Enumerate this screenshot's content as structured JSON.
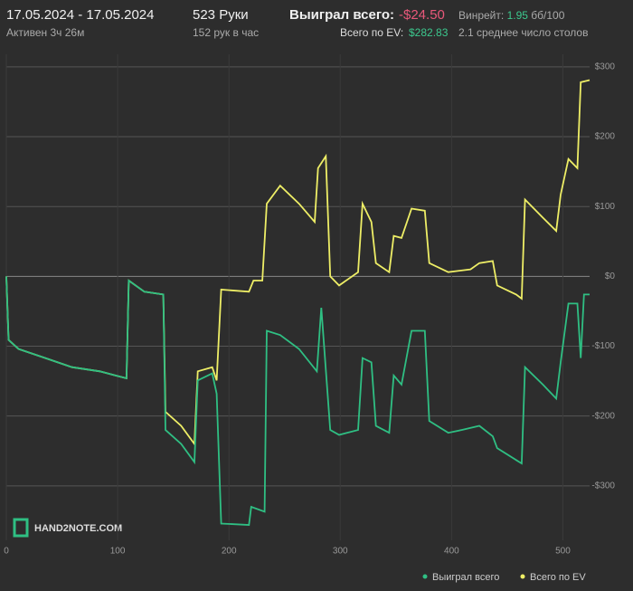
{
  "header": {
    "date_range": "17.05.2024 - 17.05.2024",
    "active": "Активен 3ч 26м",
    "hands": "523 Руки",
    "hands_per_hour": "152 рук в час",
    "won_label": "Выиграл всего:",
    "won_value": "-$24.50",
    "ev_label": "Всего по EV:",
    "ev_value": "$282.83",
    "winrate_label": "Винрейт:",
    "winrate_value": "1.95",
    "winrate_unit": "бб/100",
    "tables": "2.1 среднее число столов"
  },
  "logo": "HAND2NOTE.COM",
  "chart_data": {
    "type": "line",
    "xlim": [
      0,
      524
    ],
    "ylim": [
      -378,
      318
    ],
    "xticks": [
      0,
      100,
      200,
      300,
      400,
      500
    ],
    "yticks": [
      {
        "value": -300,
        "label": "-$300"
      },
      {
        "value": -200,
        "label": "-$200"
      },
      {
        "value": -100,
        "label": "-$100"
      },
      {
        "value": 0,
        "label": "$0"
      },
      {
        "value": 100,
        "label": "$100"
      },
      {
        "value": 200,
        "label": "$200"
      },
      {
        "value": 300,
        "label": "$300"
      }
    ],
    "grid": true,
    "series": [
      {
        "name": "Выиграл всего",
        "color": "#2fbf83",
        "x": [
          0,
          2,
          11,
          35,
          59,
          84,
          108,
          110,
          124,
          141,
          143,
          157,
          169,
          172,
          185,
          189,
          193,
          218,
          220,
          232,
          234,
          246,
          263,
          279,
          283,
          291,
          299,
          316,
          320,
          328,
          332,
          344,
          348,
          355,
          364,
          376,
          380,
          397,
          409,
          425,
          437,
          441,
          458,
          463,
          466,
          482,
          494,
          498,
          505,
          513,
          516,
          519,
          524
        ],
        "values": [
          0,
          -91,
          -104,
          -117,
          -130,
          -136,
          -146,
          -6,
          -22,
          -26,
          -220,
          -240,
          -266,
          -149,
          -139,
          -168,
          -354,
          -356,
          -330,
          -337,
          -78,
          -84,
          -104,
          -136,
          -45,
          -220,
          -227,
          -220,
          -117,
          -123,
          -214,
          -224,
          -142,
          -155,
          -78,
          -78,
          -207,
          -224,
          -220,
          -214,
          -229,
          -246,
          -263,
          -268,
          -130,
          -155,
          -175,
          -123,
          -39,
          -39,
          -117,
          -26,
          -26
        ]
      },
      {
        "name": "Всего по EV",
        "color": "#eeee66",
        "x": [
          0,
          2,
          11,
          35,
          59,
          84,
          108,
          110,
          124,
          141,
          143,
          157,
          169,
          172,
          185,
          189,
          193,
          218,
          222,
          230,
          234,
          246,
          263,
          277,
          280,
          287,
          291,
          299,
          316,
          320,
          328,
          332,
          344,
          348,
          355,
          364,
          376,
          380,
          397,
          417,
          425,
          437,
          441,
          458,
          463,
          466,
          482,
          494,
          498,
          505,
          513,
          516,
          524
        ],
        "values": [
          0,
          -91,
          -104,
          -117,
          -130,
          -136,
          -146,
          -6,
          -22,
          -26,
          -194,
          -214,
          -240,
          -136,
          -130,
          -149,
          -19,
          -22,
          -6,
          -6,
          104,
          130,
          104,
          78,
          155,
          172,
          0,
          -13,
          6,
          104,
          78,
          19,
          6,
          58,
          55,
          97,
          94,
          19,
          6,
          10,
          19,
          22,
          -13,
          -26,
          -32,
          110,
          84,
          65,
          117,
          168,
          155,
          278,
          281
        ]
      }
    ]
  }
}
